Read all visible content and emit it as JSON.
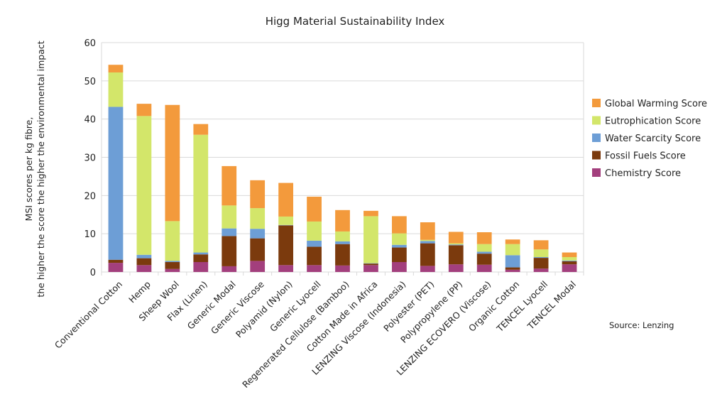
{
  "chart_data": {
    "type": "bar",
    "stacked": true,
    "title": "Higg Material Sustainability Index",
    "xlabel": "",
    "ylabel_lines": [
      "MSI scores per kg fibre,",
      "the higher the score the higher the environmental impact"
    ],
    "ylim": [
      0,
      60
    ],
    "yticks": [
      0,
      10,
      20,
      30,
      40,
      50,
      60
    ],
    "grid": true,
    "legend_position": "right",
    "source": "Source: Lenzing",
    "categories": [
      "Conventional Cotton",
      "Hemp",
      "Sheep Wool",
      "Flax (Linen)",
      "Generic Modal",
      "Generic Viscose",
      "Polyamid (Nylon)",
      "Generic Lyocell",
      "Regenerated Cellulose (Bamboo)",
      "Cotton Made in Africa",
      "LENZING Viscose (Indonesia)",
      "Polyester (PET)",
      "Polypropylene (PP)",
      "LENZING ECOVERO (Viscose)",
      "Organic Cotton",
      "TENCEL Lyocell",
      "TENCEL Modal"
    ],
    "series": [
      {
        "name": "Chemistry Score",
        "color": "#a33f7d",
        "values": [
          2.4,
          1.8,
          0.8,
          2.6,
          1.5,
          2.9,
          1.8,
          1.8,
          1.7,
          1.8,
          2.6,
          1.6,
          2.0,
          1.9,
          0.6,
          0.9,
          2.0
        ]
      },
      {
        "name": "Fossil Fuels Score",
        "color": "#7b3a0d",
        "values": [
          0.8,
          1.8,
          1.8,
          2.0,
          7.9,
          5.9,
          10.4,
          4.8,
          5.6,
          0.4,
          3.8,
          5.9,
          5.0,
          2.9,
          0.6,
          2.8,
          0.8
        ]
      },
      {
        "name": "Water Scarcity Score",
        "color": "#6d9ed6",
        "values": [
          40.0,
          0.9,
          0.3,
          0.5,
          2.0,
          2.5,
          0.1,
          1.6,
          0.7,
          0.1,
          0.7,
          0.6,
          0.2,
          0.5,
          3.2,
          0.2,
          0.2
        ]
      },
      {
        "name": "Eutrophication Score",
        "color": "#d3e66a",
        "values": [
          9.0,
          36.3,
          10.4,
          30.8,
          6.0,
          5.4,
          2.2,
          5.0,
          2.6,
          12.3,
          3.0,
          0.3,
          0.3,
          2.0,
          2.9,
          2.0,
          0.9
        ]
      },
      {
        "name": "Global Warming Score",
        "color": "#f39a3c",
        "values": [
          2.0,
          3.2,
          30.4,
          2.8,
          10.3,
          7.3,
          8.8,
          6.5,
          5.6,
          1.4,
          4.5,
          4.6,
          3.0,
          3.1,
          1.2,
          2.4,
          1.2
        ]
      }
    ]
  }
}
